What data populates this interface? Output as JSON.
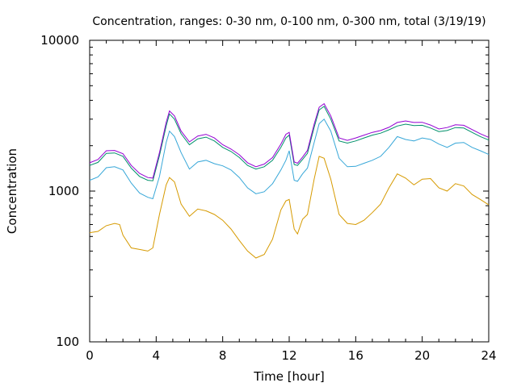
{
  "chart_data": {
    "type": "line",
    "title": "Concentration, ranges: 0-30 nm, 0-100 nm, 0-300 nm, total (3/19/19)",
    "xlabel": "Time [hour]",
    "ylabel": "Concentration",
    "xlim": [
      0,
      24
    ],
    "ylim": [
      100,
      10000
    ],
    "yscale": "log",
    "grid": false,
    "x_ticks": [
      "0",
      "4",
      "8",
      "12",
      "16",
      "20",
      "24"
    ],
    "y_ticks": [
      "100",
      "1000",
      "10000"
    ],
    "x_tick_values": [
      0,
      4,
      8,
      12,
      16,
      20,
      24
    ],
    "y_tick_values": [
      100,
      1000,
      10000
    ],
    "series": [
      {
        "color": "#d69a00",
        "x": [
          0,
          0.5,
          1,
          1.5,
          1.8,
          2.0,
          2.5,
          3,
          3.5,
          3.8,
          4.2,
          4.6,
          4.8,
          5.1,
          5.5,
          6,
          6.5,
          7,
          7.5,
          8,
          8.5,
          9,
          9.5,
          10,
          10.5,
          11,
          11.5,
          11.8,
          12.0,
          12.3,
          12.5,
          12.8,
          13.1,
          13.5,
          13.8,
          14.1,
          14.5,
          15,
          15.5,
          16,
          16.5,
          17,
          17.5,
          18,
          18.5,
          19,
          19.5,
          20,
          20.5,
          21,
          21.5,
          22,
          22.5,
          23,
          23.5,
          24
        ],
        "y": [
          530,
          540,
          590,
          610,
          600,
          510,
          420,
          410,
          400,
          420,
          700,
          1100,
          1230,
          1150,
          820,
          680,
          760,
          740,
          700,
          640,
          560,
          470,
          400,
          360,
          380,
          480,
          750,
          860,
          880,
          560,
          520,
          650,
          700,
          1200,
          1700,
          1650,
          1200,
          700,
          610,
          600,
          640,
          720,
          820,
          1050,
          1300,
          1220,
          1100,
          1200,
          1210,
          1050,
          1000,
          1120,
          1080,
          950,
          880,
          810
        ]
      },
      {
        "color": "#37a7d8",
        "x": [
          0,
          0.5,
          1,
          1.5,
          2,
          2.5,
          3,
          3.5,
          3.8,
          4.2,
          4.6,
          4.8,
          5.1,
          5.5,
          6,
          6.5,
          7,
          7.5,
          8,
          8.5,
          9,
          9.5,
          10,
          10.5,
          11,
          11.5,
          11.8,
          12.0,
          12.3,
          12.5,
          12.8,
          13.1,
          13.5,
          13.8,
          14.1,
          14.5,
          15,
          15.5,
          16,
          16.5,
          17,
          17.5,
          18,
          18.5,
          19,
          19.5,
          20,
          20.5,
          21,
          21.5,
          22,
          22.5,
          23,
          23.5,
          24
        ],
        "y": [
          1180,
          1240,
          1430,
          1450,
          1380,
          1130,
          970,
          910,
          890,
          1250,
          2100,
          2500,
          2300,
          1800,
          1400,
          1560,
          1600,
          1520,
          1470,
          1380,
          1230,
          1050,
          960,
          990,
          1120,
          1380,
          1600,
          1850,
          1180,
          1160,
          1300,
          1420,
          2100,
          2800,
          3000,
          2500,
          1650,
          1450,
          1460,
          1530,
          1600,
          1700,
          1950,
          2300,
          2200,
          2150,
          2250,
          2200,
          2050,
          1950,
          2080,
          2100,
          1950,
          1850,
          1750
        ]
      },
      {
        "color": "#00906a",
        "x": [
          0,
          0.5,
          1,
          1.5,
          2,
          2.5,
          3,
          3.5,
          3.8,
          4.2,
          4.6,
          4.8,
          5.1,
          5.5,
          6,
          6.5,
          7,
          7.5,
          8,
          8.5,
          9,
          9.5,
          10,
          10.5,
          11,
          11.5,
          11.8,
          12.0,
          12.3,
          12.5,
          12.8,
          13.1,
          13.5,
          13.8,
          14.1,
          14.5,
          15,
          15.5,
          16,
          16.5,
          17,
          17.5,
          18,
          18.5,
          19,
          19.5,
          20,
          20.5,
          21,
          21.5,
          22,
          22.5,
          23,
          23.5,
          24
        ],
        "y": [
          1480,
          1550,
          1780,
          1790,
          1700,
          1420,
          1250,
          1180,
          1170,
          1720,
          2700,
          3250,
          3000,
          2400,
          2030,
          2220,
          2280,
          2150,
          1950,
          1830,
          1670,
          1480,
          1400,
          1450,
          1600,
          1950,
          2250,
          2350,
          1500,
          1480,
          1620,
          1780,
          2650,
          3450,
          3650,
          3000,
          2150,
          2080,
          2150,
          2250,
          2350,
          2420,
          2550,
          2700,
          2780,
          2720,
          2730,
          2620,
          2480,
          2520,
          2640,
          2620,
          2450,
          2300,
          2180
        ]
      },
      {
        "color": "#9400d3",
        "x": [
          0,
          0.5,
          1,
          1.5,
          2,
          2.5,
          3,
          3.5,
          3.8,
          4.2,
          4.6,
          4.8,
          5.1,
          5.5,
          6,
          6.5,
          7,
          7.5,
          8,
          8.5,
          9,
          9.5,
          10,
          10.5,
          11,
          11.5,
          11.8,
          12.0,
          12.3,
          12.5,
          12.8,
          13.1,
          13.5,
          13.8,
          14.1,
          14.5,
          15,
          15.5,
          16,
          16.5,
          17,
          17.5,
          18,
          18.5,
          19,
          19.5,
          20,
          20.5,
          21,
          21.5,
          22,
          22.5,
          23,
          23.5,
          24
        ],
        "y": [
          1540,
          1620,
          1850,
          1860,
          1770,
          1480,
          1310,
          1230,
          1220,
          1800,
          2850,
          3400,
          3150,
          2500,
          2120,
          2320,
          2380,
          2250,
          2030,
          1900,
          1740,
          1540,
          1450,
          1510,
          1670,
          2050,
          2380,
          2450,
          1560,
          1530,
          1680,
          1860,
          2780,
          3600,
          3800,
          3150,
          2250,
          2170,
          2250,
          2350,
          2450,
          2520,
          2650,
          2850,
          2920,
          2850,
          2860,
          2740,
          2580,
          2640,
          2750,
          2730,
          2560,
          2400,
          2270
        ]
      }
    ]
  }
}
